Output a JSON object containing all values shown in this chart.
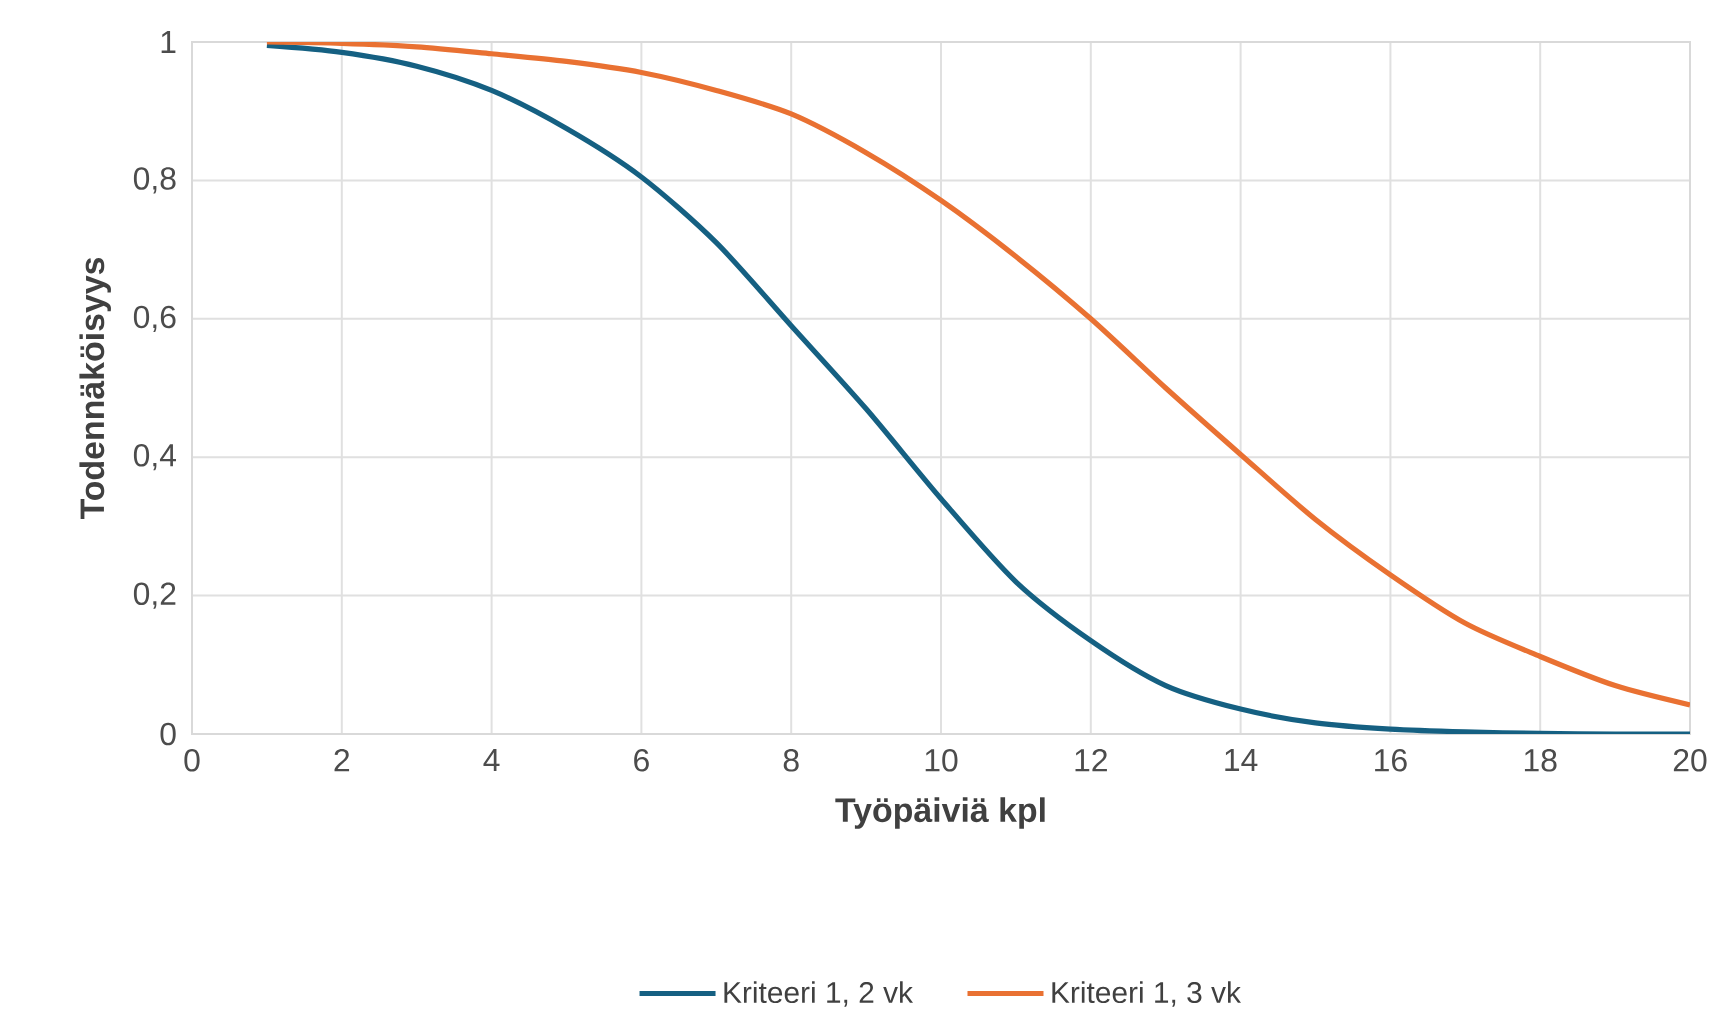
{
  "chart_data": {
    "type": "line",
    "xlabel": "Työpäiviä kpl",
    "ylabel": "Todennäköisyys",
    "x": [
      1,
      2,
      3,
      4,
      5,
      6,
      7,
      8,
      9,
      10,
      11,
      12,
      13,
      14,
      15,
      16,
      17,
      18,
      19,
      20
    ],
    "series": [
      {
        "name": "Kriteeri 1, 2 vk",
        "color": "#156082",
        "values": [
          0.995,
          0.985,
          0.965,
          0.93,
          0.875,
          0.805,
          0.71,
          0.59,
          0.47,
          0.34,
          0.22,
          0.135,
          0.07,
          0.036,
          0.016,
          0.007,
          0.003,
          0.001,
          0.0,
          0.0
        ]
      },
      {
        "name": "Kriteeri 1, 3 vk",
        "color": "#e97132",
        "values": [
          1.0,
          0.998,
          0.993,
          0.983,
          0.972,
          0.956,
          0.93,
          0.896,
          0.84,
          0.771,
          0.69,
          0.6,
          0.5,
          0.404,
          0.31,
          0.23,
          0.16,
          0.112,
          0.07,
          0.042
        ]
      }
    ],
    "xlim": [
      0,
      20
    ],
    "xticks": [
      0,
      2,
      4,
      6,
      8,
      10,
      12,
      14,
      16,
      18,
      20
    ],
    "ylim": [
      0,
      1
    ],
    "yticks": [
      0,
      {
        "value": 0.2,
        "label": "0,2"
      },
      {
        "value": 0.4,
        "label": "0,4"
      },
      {
        "value": 0.6,
        "label": "0,6"
      },
      {
        "value": 0.8,
        "label": "0,8"
      },
      1
    ],
    "grid": true,
    "legend": "bottom",
    "marker": "none",
    "line_style": "solid"
  }
}
